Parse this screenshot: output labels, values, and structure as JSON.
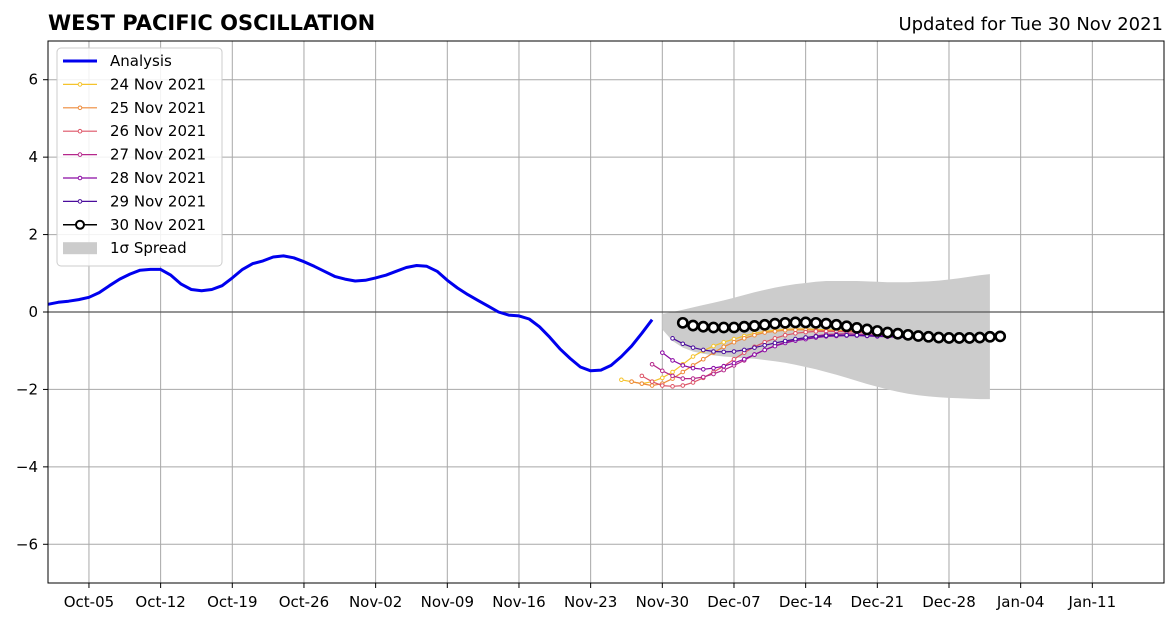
{
  "title": "WEST PACIFIC OSCILLATION",
  "updated": "Updated for Tue 30 Nov 2021",
  "chart_data": {
    "type": "line",
    "x_axis": {
      "ticks": [
        "Oct-05",
        "Oct-12",
        "Oct-19",
        "Oct-26",
        "Nov-02",
        "Nov-09",
        "Nov-16",
        "Nov-23",
        "Nov-30",
        "Dec-07",
        "Dec-14",
        "Dec-21",
        "Dec-28",
        "Jan-04",
        "Jan-11"
      ],
      "range": [
        "2021-10-01",
        "2022-01-18"
      ]
    },
    "y_axis": {
      "range": [
        -7,
        7
      ],
      "ticks": [
        -6,
        -4,
        -2,
        0,
        2,
        4,
        6
      ]
    },
    "grid": true,
    "zero_line": true,
    "legend_position": "top-left",
    "legend": [
      "Analysis",
      "24 Nov 2021",
      "25 Nov 2021",
      "26 Nov 2021",
      "27 Nov 2021",
      "28 Nov 2021",
      "29 Nov 2021",
      "30 Nov 2021",
      "1σ Spread"
    ],
    "analysis": {
      "name": "Analysis",
      "color": "#0000ee",
      "start": "2021-10-01",
      "values": [
        0.2,
        0.25,
        0.28,
        0.32,
        0.38,
        0.5,
        0.68,
        0.85,
        0.98,
        1.08,
        1.1,
        1.1,
        0.95,
        0.72,
        0.58,
        0.55,
        0.58,
        0.68,
        0.88,
        1.1,
        1.25,
        1.32,
        1.42,
        1.45,
        1.4,
        1.3,
        1.18,
        1.05,
        0.92,
        0.85,
        0.8,
        0.82,
        0.88,
        0.95,
        1.05,
        1.15,
        1.2,
        1.18,
        1.05,
        0.82,
        0.62,
        0.45,
        0.3,
        0.15,
        0.0,
        -0.08,
        -0.1,
        -0.18,
        -0.38,
        -0.65,
        -0.95,
        -1.2,
        -1.42,
        -1.52,
        -1.5,
        -1.38,
        -1.15,
        -0.88,
        -0.55,
        -0.2
      ]
    },
    "forecasts": [
      {
        "name": "24 Nov 2021",
        "color": "#f5c32b",
        "start": "2021-11-26",
        "values": [
          -1.75,
          -1.8,
          -1.85,
          -1.8,
          -1.7,
          -1.55,
          -1.35,
          -1.15,
          -1.0,
          -0.88,
          -0.78,
          -0.7,
          -0.62,
          -0.55,
          -0.5,
          -0.47,
          -0.45,
          -0.44,
          -0.44,
          -0.45,
          -0.46,
          -0.47,
          -0.48,
          -0.49,
          -0.5,
          -0.52,
          -0.53,
          -0.55,
          -0.57,
          -0.58,
          -0.6
        ]
      },
      {
        "name": "25 Nov 2021",
        "color": "#ed8a3a",
        "start": "2021-11-27",
        "values": [
          -1.8,
          -1.85,
          -1.9,
          -1.85,
          -1.72,
          -1.55,
          -1.38,
          -1.22,
          -1.05,
          -0.9,
          -0.78,
          -0.68,
          -0.6,
          -0.53,
          -0.5,
          -0.47,
          -0.46,
          -0.46,
          -0.47,
          -0.48,
          -0.49,
          -0.5,
          -0.52,
          -0.53,
          -0.55,
          -0.56,
          -0.58,
          -0.6,
          -0.61,
          -0.62,
          -0.63
        ]
      },
      {
        "name": "26 Nov 2021",
        "color": "#dd5466",
        "start": "2021-11-28",
        "values": [
          -1.65,
          -1.8,
          -1.9,
          -1.92,
          -1.9,
          -1.82,
          -1.7,
          -1.55,
          -1.4,
          -1.22,
          -1.05,
          -0.9,
          -0.78,
          -0.68,
          -0.6,
          -0.55,
          -0.52,
          -0.5,
          -0.5,
          -0.5,
          -0.51,
          -0.52,
          -0.53,
          -0.55,
          -0.56,
          -0.57,
          -0.58,
          -0.6,
          -0.61,
          -0.62,
          -0.63
        ]
      },
      {
        "name": "27 Nov 2021",
        "color": "#b5278b",
        "start": "2021-11-29",
        "values": [
          -1.35,
          -1.52,
          -1.65,
          -1.72,
          -1.72,
          -1.68,
          -1.6,
          -1.5,
          -1.38,
          -1.25,
          -1.1,
          -0.98,
          -0.87,
          -0.78,
          -0.72,
          -0.66,
          -0.62,
          -0.58,
          -0.57,
          -0.56,
          -0.57,
          -0.58,
          -0.6,
          -0.61,
          -0.62,
          -0.63,
          -0.64,
          -0.65,
          -0.66,
          -0.67,
          -0.68
        ]
      },
      {
        "name": "28 Nov 2021",
        "color": "#8b0aa5",
        "start": "2021-11-30",
        "values": [
          -1.05,
          -1.25,
          -1.38,
          -1.45,
          -1.48,
          -1.45,
          -1.4,
          -1.32,
          -1.22,
          -1.1,
          -0.98,
          -0.88,
          -0.8,
          -0.74,
          -0.7,
          -0.66,
          -0.63,
          -0.62,
          -0.61,
          -0.61,
          -0.62,
          -0.63,
          -0.64,
          -0.65,
          -0.66,
          -0.67,
          -0.68,
          -0.68,
          -0.69,
          -0.7,
          -0.7
        ]
      },
      {
        "name": "29 Nov 2021",
        "color": "#4a0c9c",
        "start": "2021-12-01",
        "values": [
          -0.68,
          -0.82,
          -0.92,
          -0.98,
          -1.02,
          -1.03,
          -1.02,
          -0.98,
          -0.92,
          -0.86,
          -0.8,
          -0.75,
          -0.7,
          -0.66,
          -0.63,
          -0.61,
          -0.6,
          -0.6,
          -0.6,
          -0.61,
          -0.62,
          -0.63,
          -0.65,
          -0.66,
          -0.67,
          -0.68,
          -0.69,
          -0.69,
          -0.7,
          -0.7,
          -0.7
        ]
      },
      {
        "name": "30 Nov 2021",
        "color": "#000000",
        "start": "2021-12-02",
        "values": [
          -0.28,
          -0.35,
          -0.38,
          -0.4,
          -0.4,
          -0.4,
          -0.38,
          -0.36,
          -0.33,
          -0.3,
          -0.28,
          -0.27,
          -0.27,
          -0.28,
          -0.3,
          -0.33,
          -0.37,
          -0.41,
          -0.45,
          -0.49,
          -0.53,
          -0.56,
          -0.59,
          -0.62,
          -0.64,
          -0.66,
          -0.67,
          -0.67,
          -0.67,
          -0.66,
          -0.64,
          -0.63
        ]
      }
    ],
    "spread": {
      "name": "1σ Spread",
      "color": "#cccccc",
      "start": "2021-11-30",
      "upper": [
        -0.05,
        0.0,
        0.06,
        0.12,
        0.18,
        0.24,
        0.3,
        0.37,
        0.44,
        0.51,
        0.57,
        0.63,
        0.68,
        0.72,
        0.75,
        0.78,
        0.8,
        0.8,
        0.8,
        0.8,
        0.79,
        0.78,
        0.77,
        0.77,
        0.77,
        0.78,
        0.79,
        0.81,
        0.84,
        0.87,
        0.91,
        0.95,
        0.98
      ],
      "lower": [
        -0.45,
        -0.75,
        -0.92,
        -1.02,
        -1.08,
        -1.12,
        -1.15,
        -1.17,
        -1.19,
        -1.21,
        -1.24,
        -1.27,
        -1.31,
        -1.36,
        -1.42,
        -1.48,
        -1.55,
        -1.62,
        -1.7,
        -1.78,
        -1.86,
        -1.93,
        -2.0,
        -2.06,
        -2.11,
        -2.15,
        -2.18,
        -2.2,
        -2.22,
        -2.23,
        -2.24,
        -2.25,
        -2.25
      ]
    }
  }
}
